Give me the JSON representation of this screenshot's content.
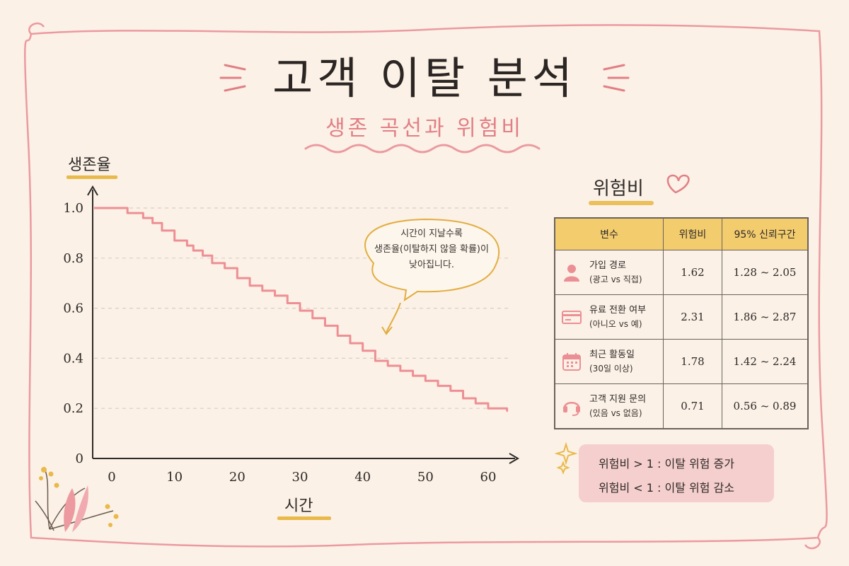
{
  "header": {
    "title": "고객 이탈 분석",
    "subtitle": "생존 곡선과 위험비"
  },
  "colors": {
    "background": "#fbf1e6",
    "accent_pink": "#e27f86",
    "accent_yellow": "#e9b949",
    "table_header": "#f3cc6e",
    "curve": "#ee8f94"
  },
  "chart_data": {
    "type": "line",
    "step": true,
    "ylabel": "생존율",
    "xlabel": "시간",
    "xlim": [
      0,
      63
    ],
    "ylim": [
      0,
      1.0
    ],
    "xticks": [
      "0",
      "10",
      "20",
      "30",
      "40",
      "50",
      "60"
    ],
    "yticks": [
      "0",
      "0.2",
      "0.4",
      "0.6",
      "0.8",
      "1.0"
    ],
    "grid": "horizontal-dashed",
    "annotation": {
      "lines": [
        "시간이 지날수록",
        "생존율(이탈하지 않을 확률)이",
        "낮아집니다."
      ]
    },
    "series": [
      {
        "x": [
          0,
          2.5,
          5,
          6.5,
          8,
          10,
          12,
          13,
          14.5,
          16,
          18,
          20,
          22,
          24,
          26,
          28,
          30,
          32,
          34,
          36,
          38,
          40,
          42,
          44,
          46,
          48,
          50,
          52,
          54,
          56,
          58,
          60,
          63
        ],
        "y": [
          1.0,
          0.98,
          0.96,
          0.94,
          0.91,
          0.87,
          0.85,
          0.83,
          0.81,
          0.78,
          0.76,
          0.72,
          0.69,
          0.67,
          0.65,
          0.62,
          0.59,
          0.56,
          0.53,
          0.49,
          0.46,
          0.43,
          0.39,
          0.37,
          0.35,
          0.33,
          0.31,
          0.29,
          0.27,
          0.24,
          0.22,
          0.2,
          0.19
        ]
      }
    ]
  },
  "hazard_table": {
    "heading": "위험비",
    "columns": [
      "변수",
      "위험비",
      "95% 신뢰구간"
    ],
    "rows": [
      {
        "icon": "person-icon",
        "name": "가입 경로",
        "detail": "(광고 vs 직접)",
        "hr": "1.62",
        "ci": "1.28 ~ 2.05"
      },
      {
        "icon": "credit-card-icon",
        "name": "유료 전환 여부",
        "detail": "(아니오 vs 예)",
        "hr": "2.31",
        "ci": "1.86 ~ 2.87"
      },
      {
        "icon": "calendar-icon",
        "name": "최근 활동일",
        "detail": "(30일 이상)",
        "hr": "1.78",
        "ci": "1.42 ~ 2.24"
      },
      {
        "icon": "headset-icon",
        "name": "고객 지원 문의",
        "detail": "(있음 vs 없음)",
        "hr": "0.71",
        "ci": "0.56 ~ 0.89"
      }
    ]
  },
  "legend": {
    "increase": "위험비 > 1 : 이탈 위험 증가",
    "decrease": "위험비 < 1 : 이탈 위험 감소"
  }
}
